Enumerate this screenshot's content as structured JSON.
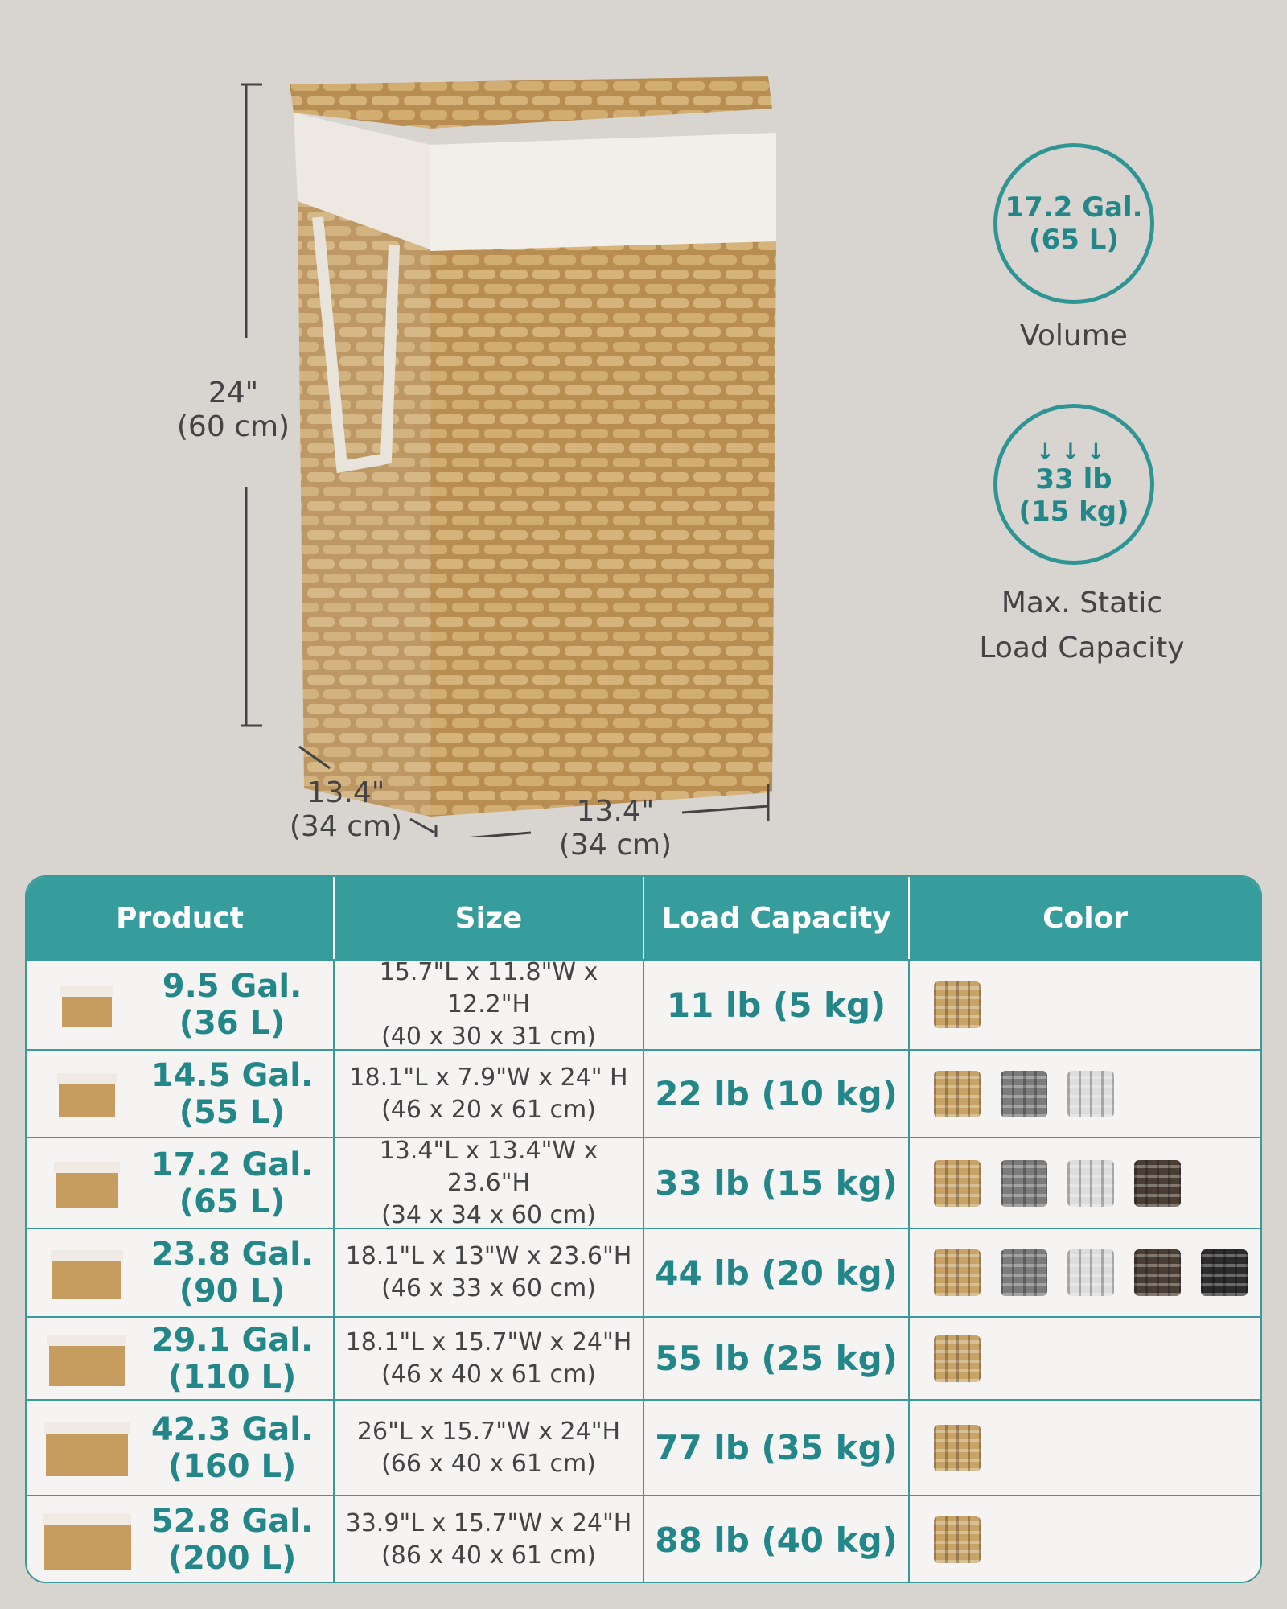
{
  "dimensions": {
    "height_in": "24\"",
    "height_cm": "(60 cm)",
    "depth_in": "13.4\"",
    "depth_cm": "(34 cm)",
    "width_in": "13.4\"",
    "width_cm": "(34 cm)"
  },
  "badges": [
    {
      "line1": "17.2 Gal.",
      "line2": "(65 L)",
      "caption1": "Volume",
      "caption2": ""
    },
    {
      "icon": "down-arrows-icon",
      "line1": "33 lb",
      "line2": "(15 kg)",
      "caption1": "Max. Static",
      "caption2": "Load Capacity"
    }
  ],
  "accent": "#379c9c",
  "table": {
    "headers": [
      "Product",
      "Size",
      "Load Capacity",
      "Color"
    ],
    "swatch_colors": {
      "natural": "#c9a366",
      "gray": "#7b7b7b",
      "white": "#dcdcdc",
      "brown": "#4a3d34",
      "black": "#2b2b2b"
    },
    "rows": [
      {
        "vol1": "9.5 Gal.",
        "vol2": "(36 L)",
        "size1": "15.7\"L x 11.8\"W x 12.2\"H",
        "size2": "(40 x 30 x 31 cm)",
        "cap": "11 lb (5 kg)",
        "colors": [
          "natural"
        ]
      },
      {
        "vol1": "14.5 Gal.",
        "vol2": "(55 L)",
        "size1": "18.1\"L x 7.9\"W x 24\" H",
        "size2": "(46 x 20 x 61 cm)",
        "cap": "22 lb (10 kg)",
        "colors": [
          "natural",
          "gray",
          "white"
        ]
      },
      {
        "vol1": "17.2 Gal.",
        "vol2": "(65 L)",
        "size1": "13.4\"L x 13.4\"W x 23.6\"H",
        "size2": "(34 x 34 x 60 cm)",
        "cap": "33 lb (15 kg)",
        "colors": [
          "natural",
          "gray",
          "white",
          "brown"
        ]
      },
      {
        "vol1": "23.8 Gal.",
        "vol2": "(90 L)",
        "size1": "18.1\"L x 13\"W x 23.6\"H",
        "size2": "(46 x 33 x 60 cm)",
        "cap": "44 lb (20 kg)",
        "colors": [
          "natural",
          "gray",
          "white",
          "brown",
          "black"
        ]
      },
      {
        "vol1": "29.1 Gal.",
        "vol2": "(110 L)",
        "size1": "18.1\"L x 15.7\"W x 24\"H",
        "size2": "(46 x 40 x 61 cm)",
        "cap": "55 lb (25 kg)",
        "colors": [
          "natural"
        ]
      },
      {
        "vol1": "42.3 Gal.",
        "vol2": "(160 L)",
        "size1": "26\"L x 15.7\"W x 24\"H",
        "size2": "(66 x 40 x 61 cm)",
        "cap": "77 lb (35 kg)",
        "colors": [
          "natural"
        ]
      },
      {
        "vol1": "52.8 Gal.",
        "vol2": "(200 L)",
        "size1": "33.9\"L x 15.7\"W x 24\"H",
        "size2": "(86 x 40 x 61 cm)",
        "cap": "88 lb (40 kg)",
        "colors": [
          "natural"
        ]
      }
    ]
  }
}
